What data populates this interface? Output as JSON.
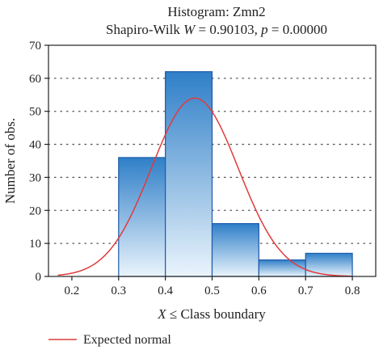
{
  "chart_data": {
    "type": "bar",
    "title": "Histogram: Zmn2",
    "subtitle_parts": {
      "prefix": "Shapiro-Wilk ",
      "w_symbol": "W",
      "w_value": " = 0.90103, ",
      "p_symbol": "p",
      "p_value": " = 0.00000"
    },
    "xlabel_parts": {
      "var": "X",
      "rest": " ≤ Class boundary"
    },
    "ylabel": "Number of obs.",
    "xlim": [
      0.15,
      0.85
    ],
    "ylim": [
      0,
      70
    ],
    "x_ticks": [
      0.2,
      0.3,
      0.4,
      0.5,
      0.6,
      0.7,
      0.8
    ],
    "x_tick_labels": [
      "0.2",
      "0.3",
      "0.4",
      "0.5",
      "0.6",
      "0.7",
      "0.8"
    ],
    "y_ticks": [
      0,
      10,
      20,
      30,
      40,
      50,
      60,
      70
    ],
    "y_tick_labels": [
      "0",
      "10",
      "20",
      "30",
      "40",
      "50",
      "60",
      "70"
    ],
    "grid": "horizontal dotted",
    "bins": [
      {
        "x0": 0.3,
        "x1": 0.4,
        "count": 36
      },
      {
        "x0": 0.4,
        "x1": 0.5,
        "count": 62
      },
      {
        "x0": 0.5,
        "x1": 0.6,
        "count": 16
      },
      {
        "x0": 0.6,
        "x1": 0.7,
        "count": 5
      },
      {
        "x0": 0.7,
        "x1": 0.8,
        "count": 7
      }
    ],
    "expected_normal": {
      "name": "Expected normal",
      "mean": 0.463,
      "sd": 0.093,
      "peak": 54,
      "x_range": [
        0.17,
        0.8
      ]
    },
    "legend_position": "bottom-left",
    "colors": {
      "bar_light": "#e6f1fb",
      "bar_dark": "#2f7fc8",
      "bar_edge": "#1e5aa8",
      "curve": "#e03b3b",
      "grid": "#555555",
      "axis": "#222222"
    }
  }
}
